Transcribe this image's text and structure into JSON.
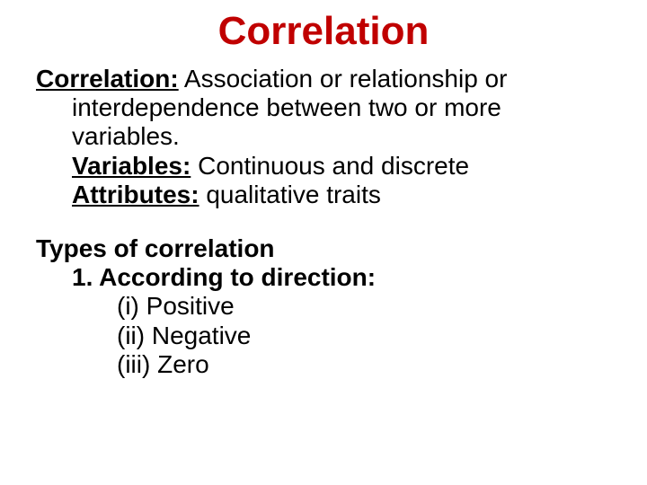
{
  "title": {
    "text": "Correlation",
    "color": "#c00000",
    "fontsize": 44
  },
  "body": {
    "fontsize": 28,
    "color": "#000000"
  },
  "definition": {
    "term": "Correlation:",
    "text_line1": " Association or relationship or",
    "text_line2": "interdependence between two or more",
    "text_line3": "variables.",
    "variables_label": "Variables:",
    "variables_text": " Continuous and discrete",
    "attributes_label": "Attributes:",
    "attributes_text": " qualitative traits"
  },
  "types": {
    "heading": "Types of correlation",
    "sub1": "1. According to direction:",
    "items": [
      "(i)   Positive",
      "(ii)  Negative",
      "(iii) Zero"
    ]
  }
}
